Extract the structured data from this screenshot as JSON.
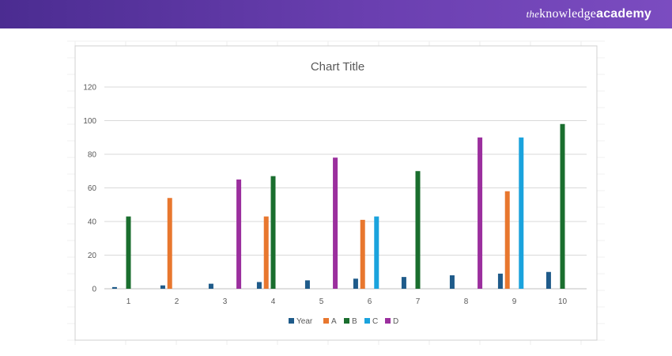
{
  "header": {
    "brand_prefix": "the",
    "brand_main": "knowledge",
    "brand_bold": "academy"
  },
  "colors": {
    "banner": "#5a36a3",
    "Year": "#1f5b8a",
    "A": "#e8772e",
    "B": "#1a6e2e",
    "C": "#1aa3dd",
    "D": "#9b2f9e",
    "grid": "#d9d9d9"
  },
  "chart_data": {
    "type": "bar",
    "title": "Chart Title",
    "categories": [
      "1",
      "2",
      "3",
      "4",
      "5",
      "6",
      "7",
      "8",
      "9",
      "10"
    ],
    "ylim": [
      0,
      120
    ],
    "yticks": [
      0,
      20,
      40,
      60,
      80,
      100,
      120
    ],
    "grid": true,
    "legend_position": "bottom",
    "series": [
      {
        "name": "Year",
        "values": [
          1,
          2,
          3,
          4,
          5,
          6,
          7,
          8,
          9,
          10
        ]
      },
      {
        "name": "A",
        "values": [
          0,
          54,
          0,
          43,
          0,
          41,
          0,
          0,
          58,
          0
        ]
      },
      {
        "name": "B",
        "values": [
          43,
          0,
          0,
          67,
          0,
          0,
          70,
          0,
          0,
          98
        ]
      },
      {
        "name": "C",
        "values": [
          0,
          0,
          0,
          0,
          0,
          43,
          0,
          0,
          90,
          0
        ]
      },
      {
        "name": "D",
        "values": [
          0,
          0,
          65,
          0,
          78,
          0,
          0,
          90,
          0,
          0
        ]
      }
    ]
  }
}
